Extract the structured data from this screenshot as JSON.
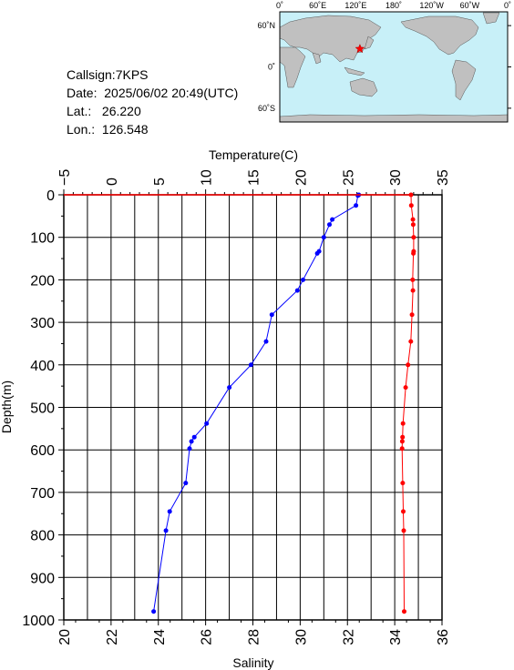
{
  "station": {
    "callsign_label": "Callsign:7KPS",
    "date_label": "Date:  2025/06/02 20:49(UTC)",
    "lat_label": "Lat.:   26.220",
    "lon_label": "Lon.:  126.548"
  },
  "map": {
    "lon_ticks": [
      "0˚",
      "60˚E",
      "120˚E",
      "180˚",
      "120˚W",
      "60˚W",
      "0˚"
    ],
    "lat_ticks": [
      "60˚N",
      "0˚",
      "60˚S"
    ],
    "marker": {
      "lat": 26.22,
      "lon": 126.548
    },
    "colors": {
      "ocean": "#c8f0f8",
      "land": "#c0c0c0",
      "marker": "#ff0000"
    }
  },
  "chart_data": {
    "type": "line",
    "title": "",
    "ylabel": "Depth(m)",
    "ylim": [
      0,
      1000
    ],
    "y_ticks": [
      0,
      100,
      200,
      300,
      400,
      500,
      600,
      700,
      800,
      900,
      1000
    ],
    "top_axis": {
      "label": "Temperature(C)",
      "lim": [
        -5,
        35
      ],
      "ticks": [
        -5,
        0,
        5,
        10,
        15,
        20,
        25,
        30,
        35
      ]
    },
    "bottom_axis": {
      "label": "Salinity",
      "lim": [
        20,
        36
      ],
      "ticks": [
        20,
        22,
        24,
        26,
        28,
        30,
        32,
        34,
        36
      ]
    },
    "grid": true,
    "series": [
      {
        "axis": "top",
        "color": "#0000ff",
        "points": [
          [
            26.2,
            0
          ],
          [
            26.1,
            2
          ],
          [
            25.9,
            25
          ],
          [
            23.4,
            58
          ],
          [
            23.1,
            70
          ],
          [
            22.5,
            100
          ],
          [
            22.0,
            133
          ],
          [
            21.8,
            138
          ],
          [
            20.3,
            200
          ],
          [
            19.7,
            225
          ],
          [
            17.0,
            282
          ],
          [
            16.4,
            345
          ],
          [
            14.8,
            400
          ],
          [
            12.5,
            453
          ],
          [
            10.1,
            538
          ],
          [
            8.8,
            570
          ],
          [
            8.5,
            580
          ],
          [
            8.3,
            597
          ],
          [
            7.9,
            678
          ],
          [
            6.2,
            745
          ],
          [
            5.8,
            790
          ],
          [
            4.5,
            980
          ]
        ]
      },
      {
        "axis": "bottom",
        "color": "#ff0000",
        "points": [
          [
            34.69,
            0
          ],
          [
            34.7,
            25
          ],
          [
            34.77,
            58
          ],
          [
            34.78,
            70
          ],
          [
            34.8,
            100
          ],
          [
            34.8,
            133
          ],
          [
            34.79,
            138
          ],
          [
            34.76,
            200
          ],
          [
            34.77,
            225
          ],
          [
            34.73,
            282
          ],
          [
            34.68,
            345
          ],
          [
            34.56,
            400
          ],
          [
            34.46,
            453
          ],
          [
            34.35,
            538
          ],
          [
            34.33,
            570
          ],
          [
            34.32,
            580
          ],
          [
            34.31,
            597
          ],
          [
            34.34,
            678
          ],
          [
            34.36,
            745
          ],
          [
            34.38,
            790
          ],
          [
            34.4,
            980
          ]
        ]
      }
    ]
  }
}
